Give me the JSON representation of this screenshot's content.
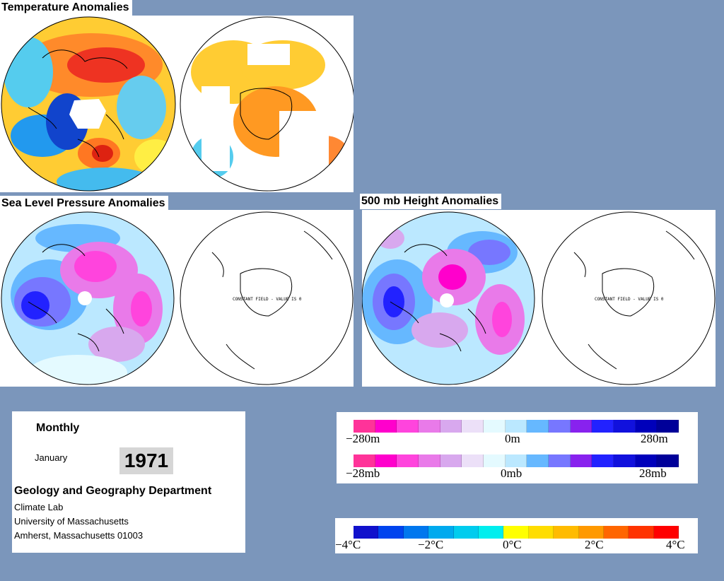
{
  "sections": {
    "temperature_title": "Temperature Anomalies",
    "slp_title": "Sea Level Pressure Anomalies",
    "height_title": "500 mb Height Anomalies",
    "constant_field_text": "CONSTANT FIELD - VALUE IS 0"
  },
  "info": {
    "period": "Monthly",
    "month": "January",
    "year": "1971",
    "department": "Geology and Geography Department",
    "lab": "Climate Lab",
    "university": "University of Massachusetts",
    "address": "Amherst, Massachusetts 01003"
  },
  "scales": {
    "height": {
      "left": "−280m",
      "mid": "0m",
      "right": "280m"
    },
    "pressure": {
      "left": "−28mb",
      "mid": "0mb",
      "right": "28mb"
    },
    "temperature": {
      "t1": "−4°C",
      "t2": "−2°C",
      "t3": "0°C",
      "t4": "2°C",
      "t5": "4°C"
    }
  },
  "colors": {
    "background": "#7b96bb",
    "pressure_height_bands": [
      "#ff3399",
      "#ff00cc",
      "#ff44dd",
      "#e97ae9",
      "#d8a8ee",
      "#ece0f8",
      "#e4faff",
      "#bbe8ff",
      "#66b8ff",
      "#7777ff",
      "#8822ee",
      "#2222ff",
      "#1111dd",
      "#0000bb",
      "#000099"
    ],
    "temperature_bands": [
      "#1111cc",
      "#0044ee",
      "#0077ee",
      "#00aaee",
      "#00ccee",
      "#00eeee",
      "#ffff00",
      "#ffdd00",
      "#ffbb00",
      "#ff9900",
      "#ff6600",
      "#ff3300",
      "#ff0000"
    ]
  }
}
